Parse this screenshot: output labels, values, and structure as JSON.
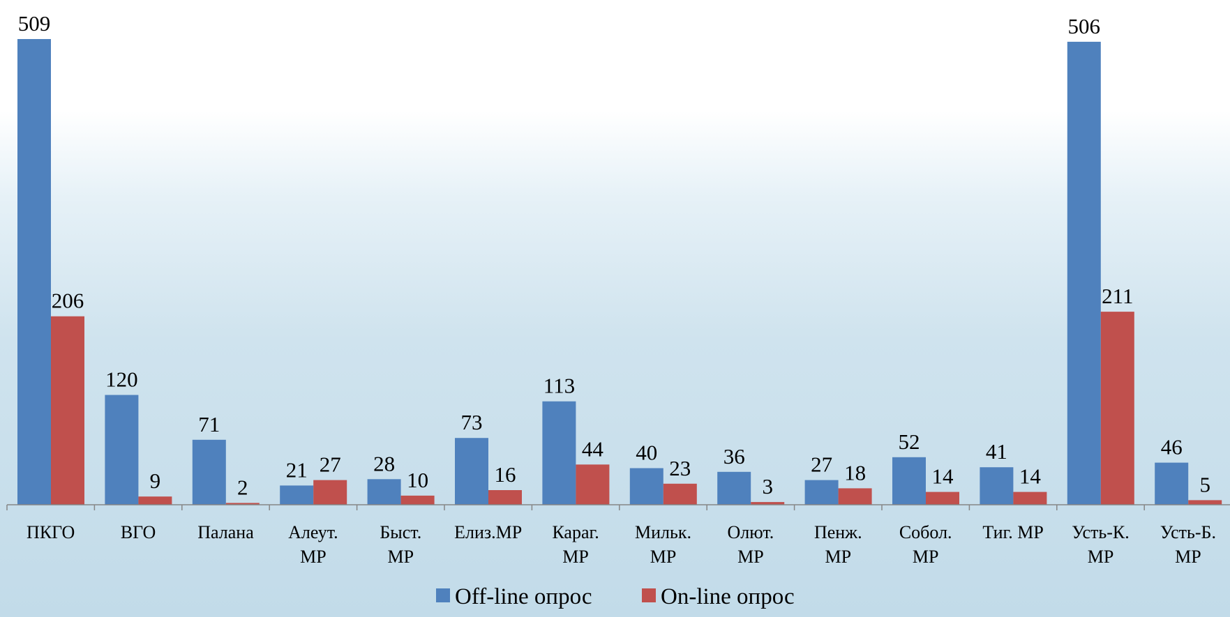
{
  "chart_data": {
    "type": "bar",
    "categories": [
      [
        "ПКГО"
      ],
      [
        "ВГО"
      ],
      [
        "Палана"
      ],
      [
        "Алеут.",
        "МР"
      ],
      [
        "Быст.",
        "МР"
      ],
      [
        "Елиз.МР"
      ],
      [
        "Караг.",
        "МР"
      ],
      [
        "Мильк.",
        "МР"
      ],
      [
        "Олют.",
        "МР"
      ],
      [
        "Пенж.",
        "МР"
      ],
      [
        "Собол.",
        "МР"
      ],
      [
        "Тиг. МР"
      ],
      [
        "Усть-К.",
        "МР"
      ],
      [
        "Усть-Б.",
        "МР"
      ]
    ],
    "series": [
      {
        "name": "Off-line опрос",
        "color": "#4f81bd",
        "values": [
          509,
          120,
          71,
          21,
          28,
          73,
          113,
          40,
          36,
          27,
          52,
          41,
          506,
          46
        ]
      },
      {
        "name": "On-line опрос",
        "color": "#c0504d",
        "values": [
          206,
          9,
          2,
          27,
          10,
          16,
          44,
          23,
          3,
          18,
          14,
          14,
          211,
          5
        ]
      }
    ],
    "ylim": [
      0,
      509
    ],
    "grid": false,
    "legend_position": "bottom"
  }
}
